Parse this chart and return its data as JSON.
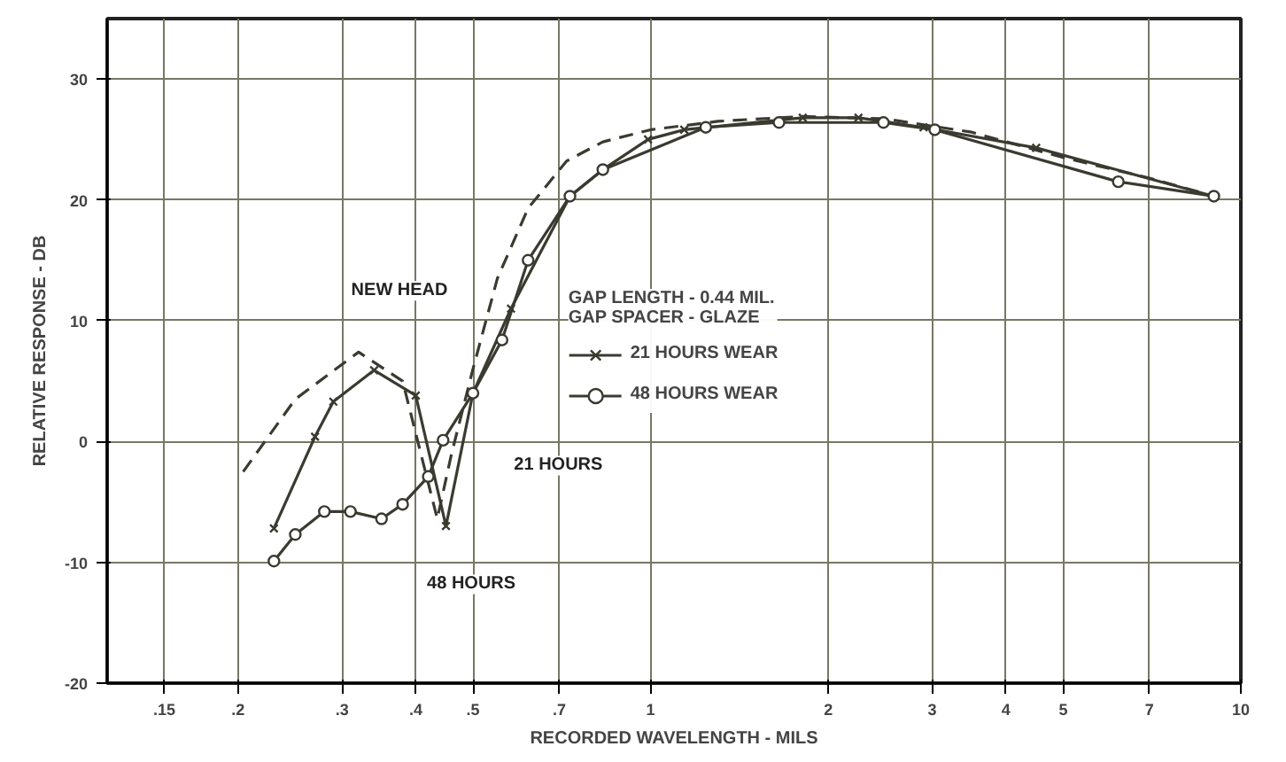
{
  "chart_data": {
    "type": "line",
    "xlabel": "RECORDED WAVELENGTH - MILS",
    "ylabel": "RELATIVE RESPONSE - DB",
    "log": "x",
    "grid": true,
    "legend": "center",
    "legend_title": "GAP LENGTH - 0.44 MIL.\nGAP SPACER - GLAZE",
    "xlim": [
      0.12,
      10
    ],
    "ylim": [
      -20,
      35
    ],
    "xticks": [
      {
        "value": 0.15,
        "label": ".15"
      },
      {
        "value": 0.2,
        "label": ".2"
      },
      {
        "value": 0.3,
        "label": ".3"
      },
      {
        "value": 0.4,
        "label": ".4"
      },
      {
        "value": 0.5,
        "label": ".5"
      },
      {
        "value": 0.7,
        "label": ".7"
      },
      1,
      2,
      3,
      4,
      5,
      7,
      10
    ],
    "yticks": [
      -20,
      -10,
      0,
      10,
      20,
      30
    ],
    "series": [
      {
        "color": "#3a3a30",
        "line_style": "dashed",
        "marker": "none",
        "x": [
          0.204,
          0.25,
          0.32,
          0.38,
          0.435,
          0.46,
          0.5,
          0.55,
          0.62,
          0.72,
          0.83,
          1.0,
          1.3,
          1.8,
          2.5,
          3.5,
          5,
          7,
          9
        ],
        "values": [
          -2.5,
          3.5,
          7.4,
          5,
          -6.4,
          -1,
          6,
          13.5,
          19.3,
          23.2,
          24.8,
          25.8,
          26.5,
          26.9,
          26.7,
          25.6,
          23.5,
          21.8,
          20.3
        ]
      },
      {
        "name": "21 HOURS WEAR",
        "color": "#3a3a30",
        "line_style": "solid",
        "marker": "cross",
        "x": [
          0.23,
          0.27,
          0.29,
          0.34,
          0.4,
          0.45,
          0.5,
          0.58,
          0.73,
          0.83,
          0.99,
          1.14,
          1.81,
          2.25,
          2.9,
          4.5,
          9.0
        ],
        "values": [
          -7.2,
          0.4,
          3.3,
          5.9,
          3.8,
          -7,
          4,
          11,
          20.3,
          22.5,
          25,
          25.8,
          26.8,
          26.8,
          26,
          24.3,
          20.3
        ]
      },
      {
        "name": "48 HOURS WEAR",
        "color": "#3a3a30",
        "line_style": "solid",
        "marker": "circle",
        "x": [
          0.23,
          0.25,
          0.28,
          0.31,
          0.35,
          0.38,
          0.42,
          0.445,
          0.5,
          0.56,
          0.62,
          0.73,
          0.83,
          1.24,
          1.65,
          2.48,
          3.03,
          6.2,
          9.0
        ],
        "values": [
          -9.9,
          -7.7,
          -5.8,
          -5.8,
          -6.4,
          -5.2,
          -2.9,
          0.1,
          4,
          8.4,
          15,
          20.3,
          22.5,
          26,
          26.4,
          26.4,
          25.8,
          21.5,
          20.3
        ]
      }
    ],
    "annotations": [
      "NEW HEAD",
      "21 HOURS",
      "48 HOURS"
    ]
  }
}
